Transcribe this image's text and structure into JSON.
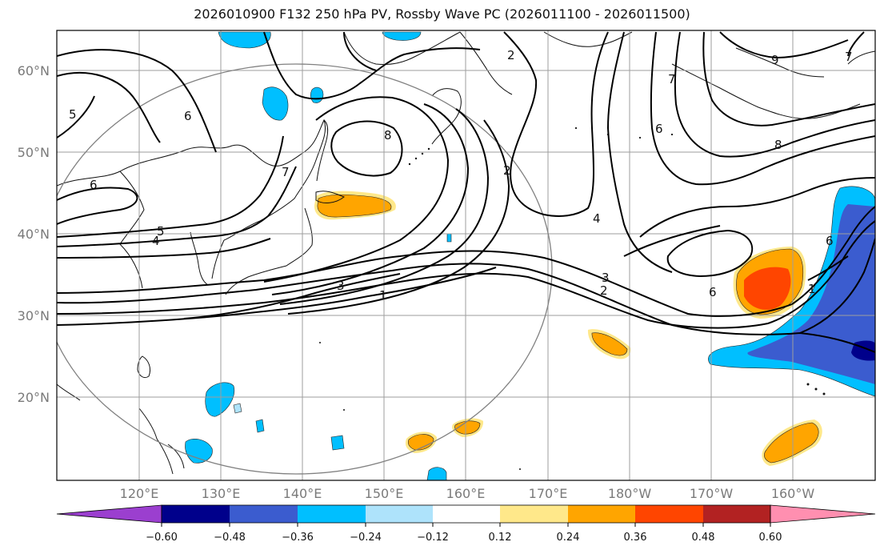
{
  "title": "2026010900 F132 250 hPa PV, Rossby Wave PC (2026011100 - 2026011500)",
  "lat_labels": [
    "60°N",
    "50°N",
    "40°N",
    "30°N",
    "20°N"
  ],
  "lon_labels": [
    "120°E",
    "130°E",
    "140°E",
    "150°E",
    "160°E",
    "170°E",
    "180°W",
    "170°W",
    "160°W"
  ],
  "colorbar": {
    "tick_labels": [
      "−0.60",
      "−0.48",
      "−0.36",
      "−0.24",
      "−0.12",
      "0.12",
      "0.24",
      "0.36",
      "0.48",
      "0.60"
    ],
    "colors": {
      "below": "#9b3fcf",
      "bins": [
        "#00008b",
        "#3b5ccf",
        "#00bfff",
        "#aee3fb",
        "#ffffff",
        "#ffe88a",
        "#ffa500",
        "#ff4500",
        "#b22222"
      ],
      "above": "#ff8fb0"
    }
  },
  "contour_labels": [
    {
      "id": "c1",
      "text": "5"
    },
    {
      "id": "c2",
      "text": "6"
    },
    {
      "id": "c3",
      "text": "6"
    },
    {
      "id": "c4",
      "text": "7"
    },
    {
      "id": "c5",
      "text": "8"
    },
    {
      "id": "c6",
      "text": "5"
    },
    {
      "id": "c7",
      "text": "4"
    },
    {
      "id": "c8",
      "text": "3"
    },
    {
      "id": "c9",
      "text": "1"
    },
    {
      "id": "c10",
      "text": "2"
    },
    {
      "id": "c11",
      "text": "2"
    },
    {
      "id": "c12",
      "text": "4"
    },
    {
      "id": "c13",
      "text": "3"
    },
    {
      "id": "c14",
      "text": "2"
    },
    {
      "id": "c15",
      "text": "7"
    },
    {
      "id": "c16",
      "text": "6"
    },
    {
      "id": "c17",
      "text": "6"
    },
    {
      "id": "c18",
      "text": "8"
    },
    {
      "id": "c19",
      "text": "9"
    },
    {
      "id": "c20",
      "text": "7"
    },
    {
      "id": "c21",
      "text": "1"
    },
    {
      "id": "c22",
      "text": "6"
    }
  ]
}
